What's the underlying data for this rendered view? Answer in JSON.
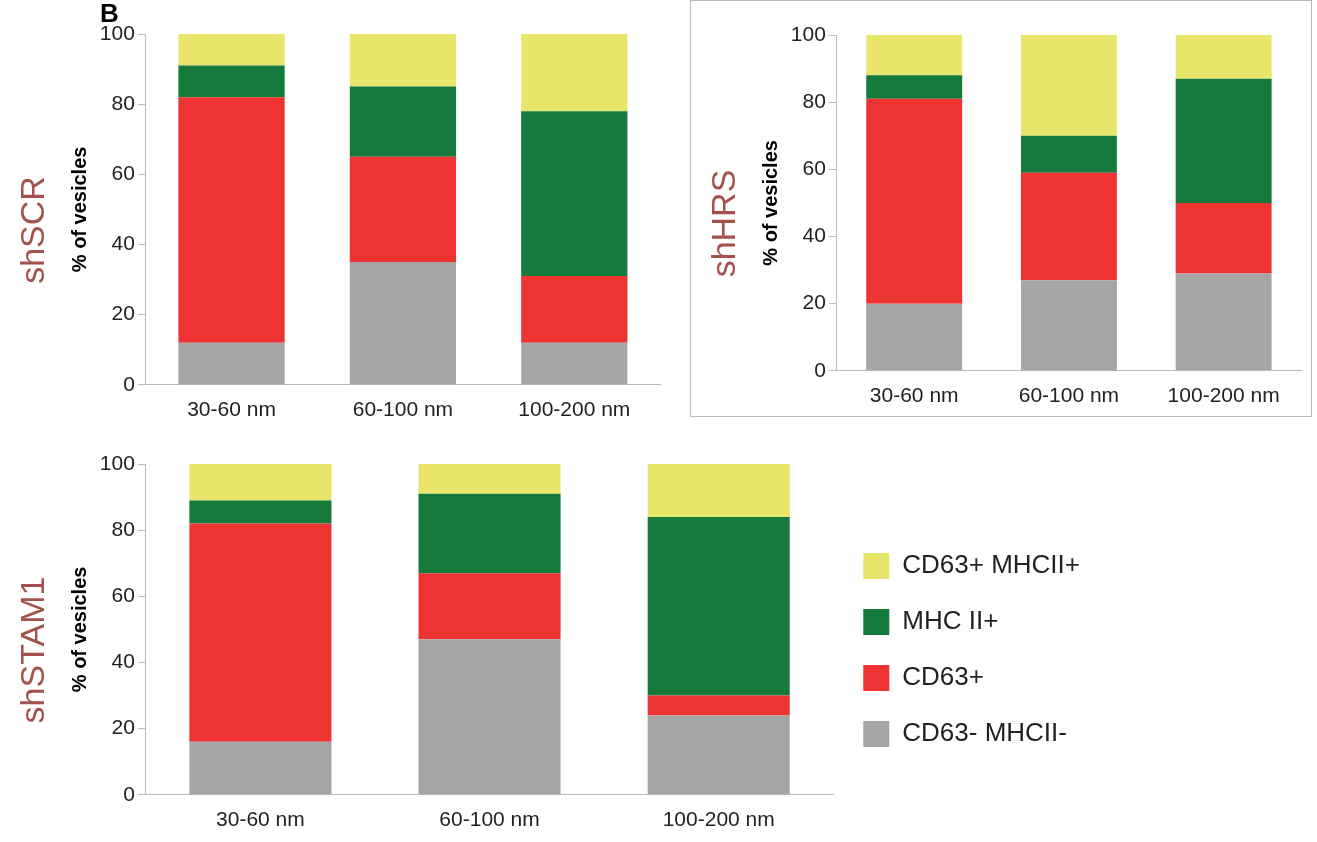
{
  "chart_data": [
    {
      "type": "bar",
      "title": "shSCR",
      "ylabel": "% of vesicles",
      "categories": [
        "30-60 nm",
        "60-100 nm",
        "100-200 nm"
      ],
      "stacked": true,
      "ylim": [
        0,
        100
      ],
      "yticks": [
        0,
        20,
        40,
        60,
        80,
        100
      ],
      "grid": false,
      "legend": false,
      "annotations": [
        "B"
      ],
      "series": [
        {
          "color": "#a6a6a6",
          "values": [
            12,
            35,
            12
          ]
        },
        {
          "color": "#ee3333",
          "values": [
            70,
            30,
            19
          ]
        },
        {
          "color": "#157a3c",
          "values": [
            9,
            20,
            47
          ]
        },
        {
          "color": "#e8e66a",
          "values": [
            9,
            15,
            22
          ]
        }
      ]
    },
    {
      "type": "bar",
      "title": "shHRS",
      "ylabel": "% of vesicles",
      "categories": [
        "30-60 nm",
        "60-100 nm",
        "100-200 nm"
      ],
      "stacked": true,
      "ylim": [
        0,
        100
      ],
      "yticks": [
        0,
        20,
        40,
        60,
        80,
        100
      ],
      "grid": false,
      "legend": false,
      "series": [
        {
          "color": "#a6a6a6",
          "values": [
            20,
            27,
            29
          ]
        },
        {
          "color": "#ee3333",
          "values": [
            61,
            32,
            21
          ]
        },
        {
          "color": "#157a3c",
          "values": [
            7,
            11,
            37
          ]
        },
        {
          "color": "#e8e66a",
          "values": [
            12,
            30,
            13
          ]
        }
      ]
    },
    {
      "type": "bar",
      "title": "shSTAM1",
      "ylabel": "% of vesicles",
      "categories": [
        "30-60 nm",
        "60-100 nm",
        "100-200 nm"
      ],
      "stacked": true,
      "ylim": [
        0,
        100
      ],
      "yticks": [
        0,
        20,
        40,
        60,
        80,
        100
      ],
      "grid": false,
      "legend": "right",
      "series": [
        {
          "name": "CD63- MHCII-",
          "color": "#a6a6a6",
          "values": [
            16,
            47,
            24
          ]
        },
        {
          "name": "CD63+",
          "color": "#ee3333",
          "values": [
            66,
            20,
            6
          ]
        },
        {
          "name": "MHC II+",
          "color": "#157a3c",
          "values": [
            7,
            24,
            54
          ]
        },
        {
          "name": "CD63+ MHCII+",
          "color": "#e8e66a",
          "values": [
            11,
            9,
            16
          ]
        }
      ]
    }
  ]
}
